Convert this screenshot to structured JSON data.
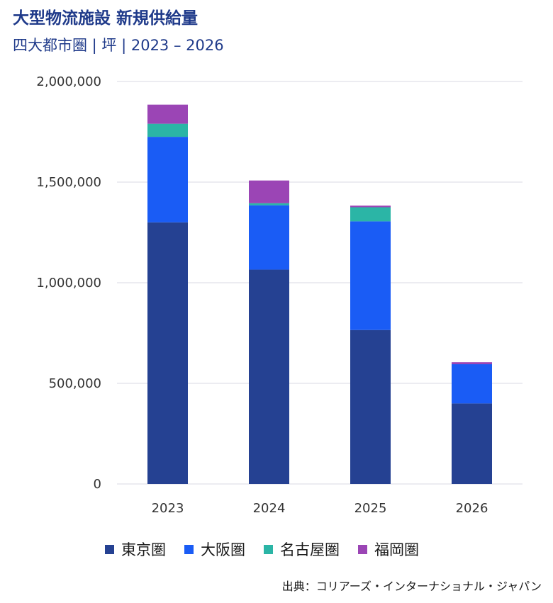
{
  "chart_data": {
    "type": "bar",
    "stacked": true,
    "title": "大型物流施設 新規供給量",
    "subtitle": "四大都市圏 | 坪 | 2023 – 2026",
    "categories": [
      "2023",
      "2024",
      "2025",
      "2026"
    ],
    "series": [
      {
        "name": "東京圏",
        "color": "#254192",
        "values": [
          1300000,
          1065000,
          765000,
          400000
        ]
      },
      {
        "name": "大阪圏",
        "color": "#1a5cf5",
        "values": [
          425000,
          320000,
          540000,
          195000
        ]
      },
      {
        "name": "名古屋圏",
        "color": "#2bb5a6",
        "values": [
          65000,
          10000,
          70000,
          0
        ]
      },
      {
        "name": "福岡圏",
        "color": "#9b45b5",
        "values": [
          95000,
          113000,
          8000,
          10000
        ]
      }
    ],
    "ylim": [
      0,
      2000000
    ],
    "yticks": [
      0,
      500000,
      1000000,
      1500000,
      2000000
    ],
    "ytick_labels": [
      "0",
      "500,000",
      "1,000,000",
      "1,500,000",
      "2,000,000"
    ],
    "xlabel": "",
    "ylabel": "",
    "grid": true,
    "legend_position": "bottom"
  },
  "source": "出典：コリアーズ・インターナショナル・ジャパン"
}
